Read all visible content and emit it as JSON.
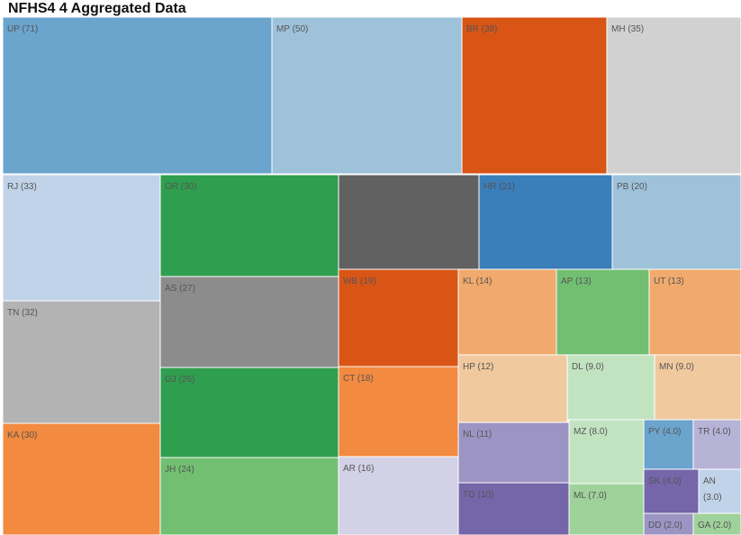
{
  "title": "NFHS4 4 Aggregated Data",
  "chart_data": {
    "type": "treemap",
    "title": "NFHS4 4 Aggregated Data",
    "cells": [
      {
        "label": "UP (71)",
        "code": "UP",
        "value": 71,
        "color": "#6ba4cd"
      },
      {
        "label": "MP (50)",
        "code": "MP",
        "value": 50,
        "color": "#9ec2da"
      },
      {
        "label": "BR (38)",
        "code": "BR",
        "value": 38,
        "color": "#d95516"
      },
      {
        "label": "MH (35)",
        "code": "MH",
        "value": 35,
        "color": "#d1d1d1"
      },
      {
        "label": "RJ (33)",
        "code": "RJ",
        "value": 33,
        "color": "#c0d3e8"
      },
      {
        "label": "OR (30)",
        "code": "OR",
        "value": 30,
        "color": "#2f9e4e"
      },
      {
        "label": "",
        "code": "",
        "value": 29,
        "color": "#616161"
      },
      {
        "label": "HR (21)",
        "code": "HR",
        "value": 21,
        "color": "#3a7eba"
      },
      {
        "label": "PB (20)",
        "code": "PB",
        "value": 20,
        "color": "#9ec2da"
      },
      {
        "label": "TN (32)",
        "code": "TN",
        "value": 32,
        "color": "#b3b3b3"
      },
      {
        "label": "AS (27)",
        "code": "AS",
        "value": 27,
        "color": "#8c8c8c"
      },
      {
        "label": "WB (19)",
        "code": "WB",
        "value": 19,
        "color": "#d95516"
      },
      {
        "label": "KL (14)",
        "code": "KL",
        "value": 14,
        "color": "#f0aa6d"
      },
      {
        "label": "AP (13)",
        "code": "AP",
        "value": 13,
        "color": "#72bf72"
      },
      {
        "label": "UT (13)",
        "code": "UT",
        "value": 13,
        "color": "#f0aa6d"
      },
      {
        "label": "GJ (26)",
        "code": "GJ",
        "value": 26,
        "color": "#2f9e4e"
      },
      {
        "label": "CT (18)",
        "code": "CT",
        "value": 18,
        "color": "#f28a40"
      },
      {
        "label": "HP (12)",
        "code": "HP",
        "value": 12,
        "color": "#f0c99e"
      },
      {
        "label": "DL (9.0)",
        "code": "DL",
        "value": 9.0,
        "color": "#c2e3c0"
      },
      {
        "label": "MN (9.0)",
        "code": "MN",
        "value": 9.0,
        "color": "#f0c99e"
      },
      {
        "label": "KA (30)",
        "code": "KA",
        "value": 30,
        "color": "#f28a40"
      },
      {
        "label": "JH (24)",
        "code": "JH",
        "value": 24,
        "color": "#72bf72"
      },
      {
        "label": "AR (16)",
        "code": "AR",
        "value": 16,
        "color": "#d2d1e6"
      },
      {
        "label": "NL (11)",
        "code": "NL",
        "value": 11,
        "color": "#9c95c3"
      },
      {
        "label": "MZ (8.0)",
        "code": "MZ",
        "value": 8.0,
        "color": "#c2e3c0"
      },
      {
        "label": "PY (4.0)",
        "code": "PY",
        "value": 4.0,
        "color": "#6ba4cd"
      },
      {
        "label": "TR (4.0)",
        "code": "TR",
        "value": 4.0,
        "color": "#b7b3d6"
      },
      {
        "label": "TG (10)",
        "code": "TG",
        "value": 10,
        "color": "#7466a9"
      },
      {
        "label": "ML (7.0)",
        "code": "ML",
        "value": 7.0,
        "color": "#9fd29a"
      },
      {
        "label": "SK (4.0)",
        "code": "SK",
        "value": 4.0,
        "color": "#7466a9"
      },
      {
        "label": "AN (3.0)",
        "code": "AN",
        "value": 3.0,
        "color": "#c0d3e8"
      },
      {
        "label": "DD (2.0)",
        "code": "DD",
        "value": 2.0,
        "color": "#9c95c3"
      },
      {
        "label": "GA (2.0)",
        "code": "GA",
        "value": 2.0,
        "color": "#9fd29a"
      }
    ]
  }
}
